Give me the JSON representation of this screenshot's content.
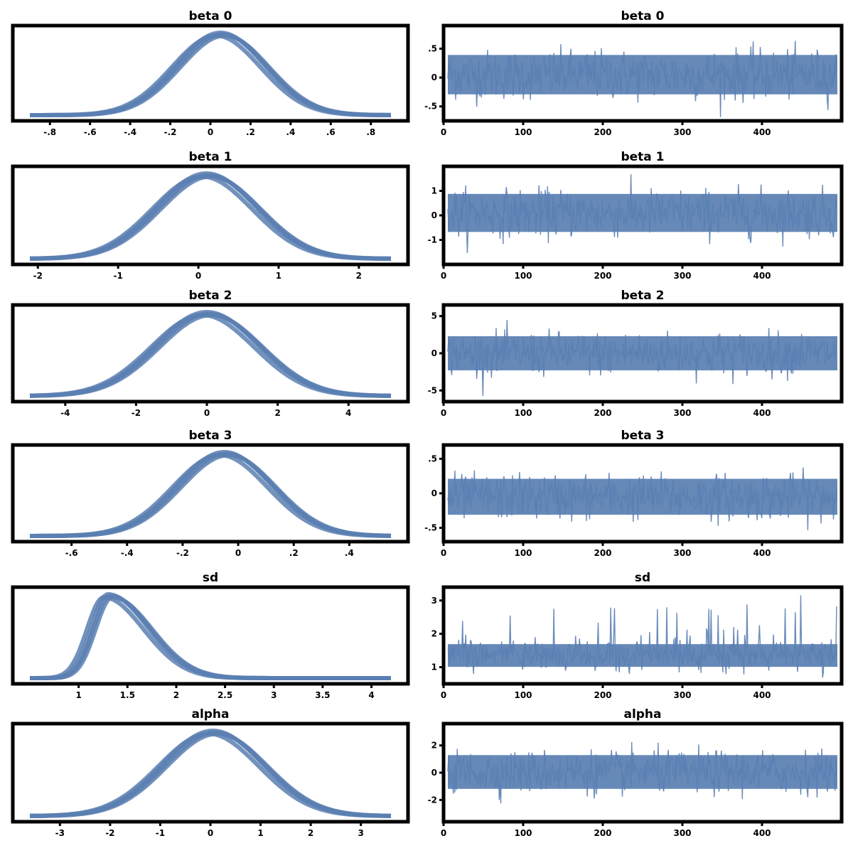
{
  "figure": {
    "description_colors": {
      "series": "#5a7fb2",
      "frame": "#000000",
      "background": "#ffffff"
    },
    "rows": 6,
    "cols": 2
  },
  "chart_data": [
    {
      "type": "line",
      "kind": "kde",
      "title": "beta 0",
      "xlim": [
        -0.9,
        0.9
      ],
      "x_ticks": [
        -0.8,
        -0.6,
        -0.4,
        -0.2,
        0.0,
        0.2,
        0.4,
        0.6,
        0.8
      ],
      "x_tick_labels": [
        "-.8",
        "-.6",
        "-.4",
        "-.2",
        "0",
        ".2",
        ".4",
        ".6",
        ".8"
      ],
      "peak_x": 0.05,
      "spread": 0.22,
      "tail": "none",
      "chains": 4
    },
    {
      "type": "line",
      "kind": "trace",
      "title": "beta 0",
      "xlim": [
        0,
        500
      ],
      "x_ticks": [
        0,
        100,
        200,
        300,
        400
      ],
      "x_tick_labels": [
        "0",
        "100",
        "200",
        "300",
        "400"
      ],
      "y_ticks": [
        -0.5,
        0.0,
        0.5
      ],
      "y_tick_labels": [
        "-.5",
        "0",
        ".5"
      ],
      "ylim": [
        -0.75,
        0.9
      ],
      "center": 0.05,
      "band": 0.55
    },
    {
      "type": "line",
      "kind": "kde",
      "title": "beta 1",
      "xlim": [
        -2.1,
        2.4
      ],
      "x_ticks": [
        -2,
        -1,
        0,
        1,
        2
      ],
      "x_tick_labels": [
        "-2",
        "-1",
        "0",
        "1",
        "2"
      ],
      "peak_x": 0.1,
      "spread": 0.62,
      "tail": "none",
      "chains": 4
    },
    {
      "type": "line",
      "kind": "trace",
      "title": "beta 1",
      "xlim": [
        0,
        500
      ],
      "x_ticks": [
        0,
        100,
        200,
        300,
        400
      ],
      "x_tick_labels": [
        "0",
        "100",
        "200",
        "300",
        "400"
      ],
      "y_ticks": [
        -1,
        0,
        1
      ],
      "y_tick_labels": [
        "-1",
        "0",
        "1"
      ],
      "ylim": [
        -2,
        2
      ],
      "center": 0.1,
      "band": 1.25
    },
    {
      "type": "line",
      "kind": "kde",
      "title": "beta 2",
      "xlim": [
        -5,
        5.2
      ],
      "x_ticks": [
        -4,
        -2,
        0,
        2,
        4
      ],
      "x_tick_labels": [
        "-4",
        "-2",
        "0",
        "2",
        "4"
      ],
      "peak_x": 0.0,
      "spread": 1.45,
      "tail": "none",
      "chains": 4
    },
    {
      "type": "line",
      "kind": "trace",
      "title": "beta 2",
      "xlim": [
        0,
        500
      ],
      "x_ticks": [
        0,
        100,
        200,
        300,
        400
      ],
      "x_tick_labels": [
        "0",
        "100",
        "200",
        "300",
        "400"
      ],
      "y_ticks": [
        -5,
        0,
        5
      ],
      "y_tick_labels": [
        "-5",
        "0",
        "5"
      ],
      "ylim": [
        -6.5,
        6.5
      ],
      "center": 0.0,
      "band": 3.7
    },
    {
      "type": "line",
      "kind": "kde",
      "title": "beta 3",
      "xlim": [
        -0.75,
        0.55
      ],
      "x_ticks": [
        -0.6,
        -0.4,
        -0.2,
        0.0,
        0.2,
        0.4
      ],
      "x_tick_labels": [
        "-.6",
        "-.4",
        "-.2",
        "0",
        ".2",
        ".4"
      ],
      "peak_x": -0.05,
      "spread": 0.17,
      "tail": "none",
      "chains": 4
    },
    {
      "type": "line",
      "kind": "trace",
      "title": "beta 3",
      "xlim": [
        0,
        500
      ],
      "x_ticks": [
        0,
        100,
        200,
        300,
        400
      ],
      "x_tick_labels": [
        "0",
        "100",
        "200",
        "300",
        "400"
      ],
      "y_ticks": [
        -0.5,
        0.0,
        0.5
      ],
      "y_tick_labels": [
        "-.5",
        "0",
        ".5"
      ],
      "ylim": [
        -0.7,
        0.7
      ],
      "center": -0.05,
      "band": 0.42
    },
    {
      "type": "line",
      "kind": "kde",
      "title": "sd",
      "xlim": [
        0.5,
        4.2
      ],
      "x_ticks": [
        1,
        1.5,
        2,
        2.5,
        3,
        3.5,
        4
      ],
      "x_tick_labels": [
        "1",
        "1.5",
        "2",
        "2.5",
        "3",
        "3.5",
        "4"
      ],
      "peak_x": 1.3,
      "spread": 0.17,
      "tail": "right",
      "chains": 4
    },
    {
      "type": "line",
      "kind": "trace",
      "title": "sd",
      "xlim": [
        0,
        500
      ],
      "x_ticks": [
        0,
        100,
        200,
        300,
        400
      ],
      "x_tick_labels": [
        "0",
        "100",
        "200",
        "300",
        "400"
      ],
      "y_ticks": [
        1,
        2,
        3
      ],
      "y_tick_labels": [
        "1",
        "2",
        "3"
      ],
      "ylim": [
        0.5,
        3.4
      ],
      "center": 1.35,
      "band": 0.55,
      "skew": "up"
    },
    {
      "type": "line",
      "kind": "kde",
      "title": "alpha",
      "xlim": [
        -3.6,
        3.6
      ],
      "x_ticks": [
        -3,
        -2,
        -1,
        0,
        1,
        2,
        3
      ],
      "x_tick_labels": [
        "-3",
        "-2",
        "-1",
        "0",
        "1",
        "2",
        "3"
      ],
      "peak_x": 0.05,
      "spread": 1.0,
      "tail": "none",
      "chains": 4
    },
    {
      "type": "line",
      "kind": "trace",
      "title": "alpha",
      "xlim": [
        0,
        500
      ],
      "x_ticks": [
        0,
        100,
        200,
        300,
        400
      ],
      "x_tick_labels": [
        "0",
        "100",
        "200",
        "300",
        "400"
      ],
      "y_ticks": [
        -2,
        0,
        2
      ],
      "y_tick_labels": [
        "-2",
        "0",
        "2"
      ],
      "ylim": [
        -3.6,
        3.6
      ],
      "center": 0.05,
      "band": 2.0
    }
  ]
}
